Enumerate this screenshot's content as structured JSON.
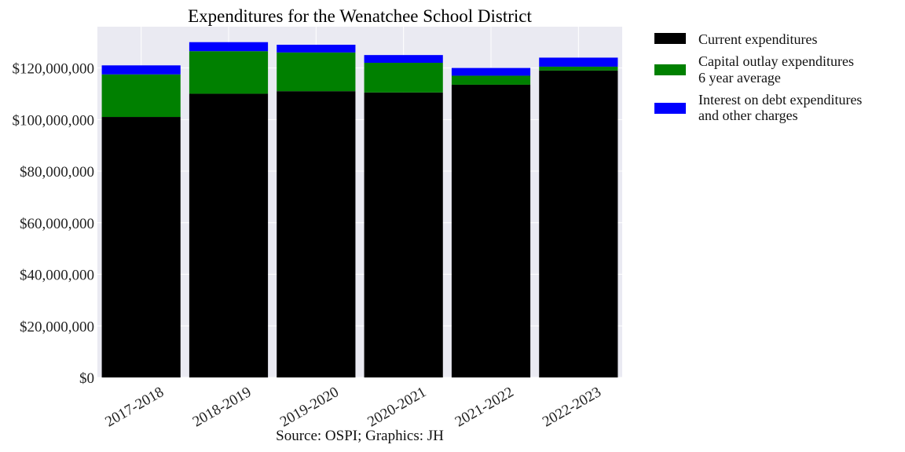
{
  "chart_data": {
    "type": "bar",
    "stacked": true,
    "title": "Expenditures for the Wenatchee School District",
    "caption": "Source: OSPI; Graphics: JH",
    "categories": [
      "2017-2018",
      "2018-2019",
      "2019-2020",
      "2020-2021",
      "2021-2022",
      "2022-2023"
    ],
    "series": [
      {
        "name": "Current expenditures",
        "color": "#000000",
        "values": [
          101000000,
          110000000,
          111000000,
          110500000,
          113500000,
          119000000
        ]
      },
      {
        "name": "Capital outlay expenditures 6 year average",
        "name_lines": [
          "Capital outlay expenditures",
          "6 year average"
        ],
        "color": "#008000",
        "values": [
          16500000,
          16500000,
          15000000,
          11500000,
          3500000,
          1500000
        ]
      },
      {
        "name": "Interest on debt expenditures and other charges",
        "name_lines": [
          "Interest on debt expenditures",
          "and other charges"
        ],
        "color": "#0000ff",
        "values": [
          3500000,
          3500000,
          3000000,
          3000000,
          3000000,
          3500000
        ]
      }
    ],
    "yticks": [
      0,
      20000000,
      40000000,
      60000000,
      80000000,
      100000000,
      120000000
    ],
    "ytick_labels": [
      "$0",
      "$20,000,000",
      "$40,000,000",
      "$60,000,000",
      "$80,000,000",
      "$100,000,000",
      "$120,000,000"
    ],
    "ylim": [
      0,
      136000000
    ],
    "grid": true,
    "legend_position": "outside-right",
    "colors": {
      "plot_background": "#eaeaf2",
      "grid": "#ffffff"
    }
  }
}
